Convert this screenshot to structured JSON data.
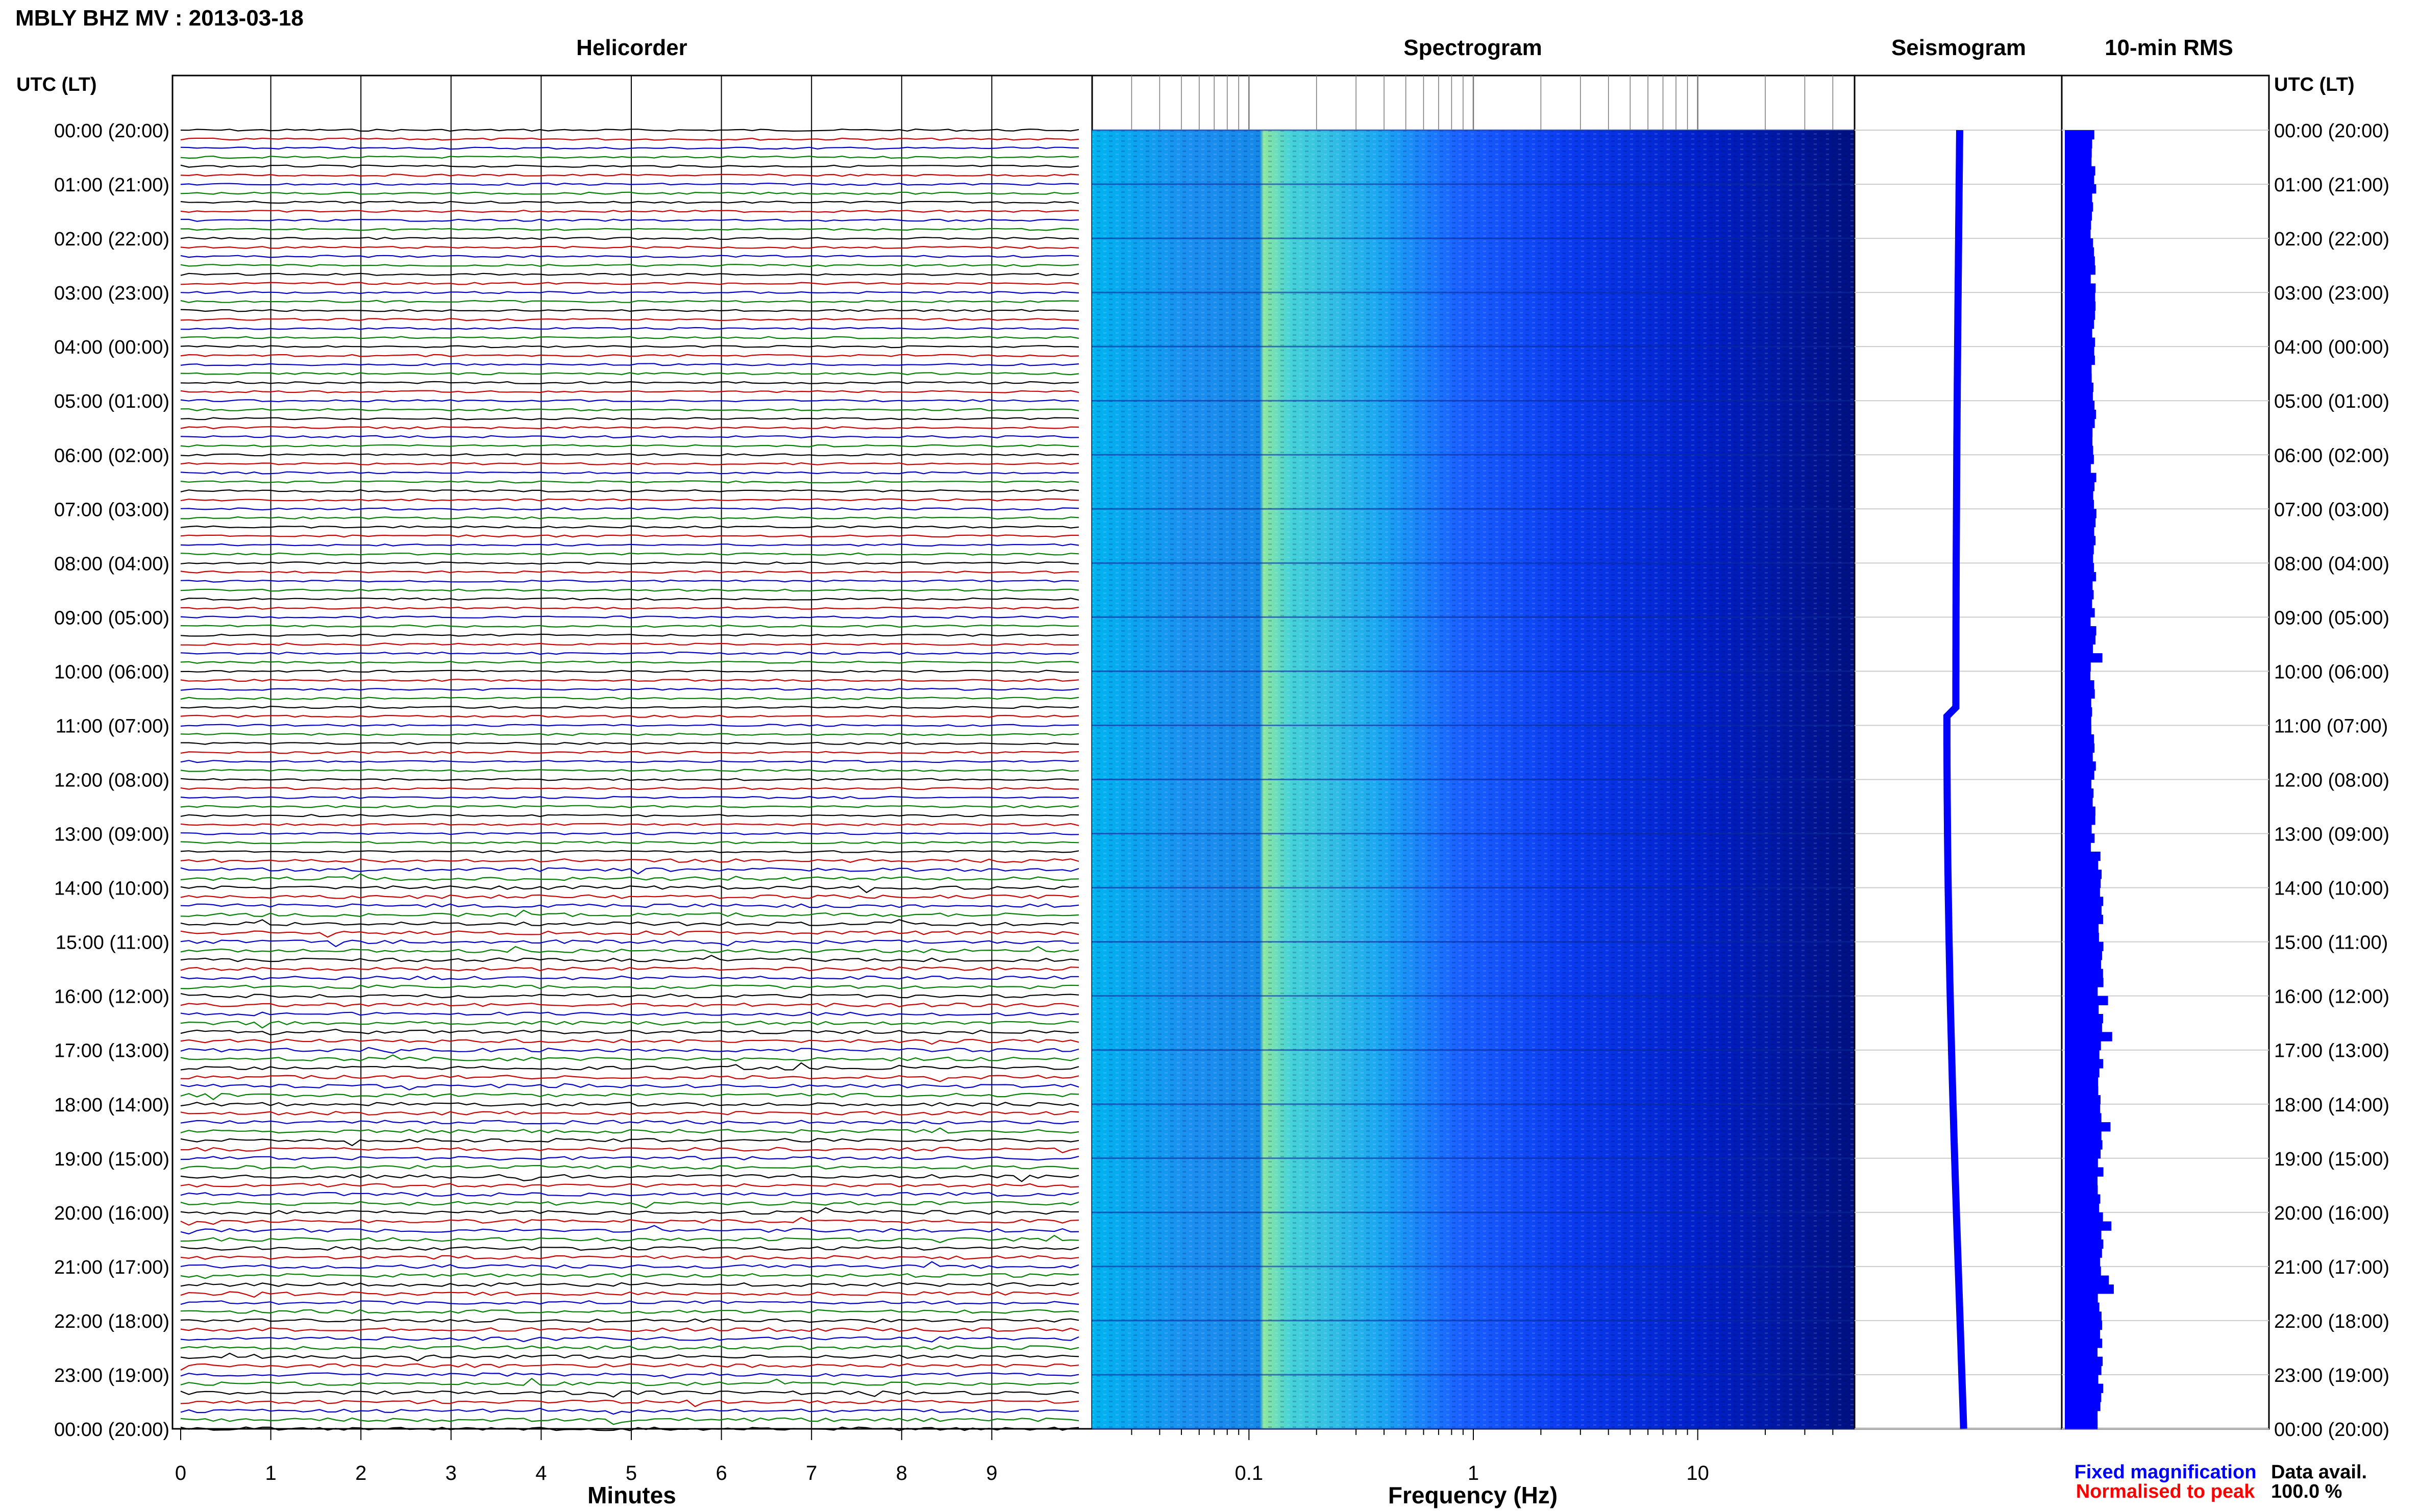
{
  "title": "MBLY BHZ MV : 2013-03-18",
  "panels": {
    "helicorder": "Helicorder",
    "spectrogram": "Spectrogram",
    "seismogram": "Seismogram",
    "rms": "10-min RMS"
  },
  "time_axis_label": "UTC (LT)",
  "time_labels": [
    "00:00 (20:00)",
    "01:00 (21:00)",
    "02:00 (22:00)",
    "03:00 (23:00)",
    "04:00 (00:00)",
    "05:00 (01:00)",
    "06:00 (02:00)",
    "07:00 (03:00)",
    "08:00 (04:00)",
    "09:00 (05:00)",
    "10:00 (06:00)",
    "11:00 (07:00)",
    "12:00 (08:00)",
    "13:00 (09:00)",
    "14:00 (10:00)",
    "15:00 (11:00)",
    "16:00 (12:00)",
    "17:00 (13:00)",
    "18:00 (14:00)",
    "19:00 (15:00)",
    "20:00 (16:00)",
    "21:00 (17:00)",
    "22:00 (18:00)",
    "23:00 (19:00)",
    "00:00 (20:00)"
  ],
  "minutes_axis": {
    "label": "Minutes",
    "ticks": [
      "0",
      "1",
      "2",
      "3",
      "4",
      "5",
      "6",
      "7",
      "8",
      "9"
    ]
  },
  "frequency_axis": {
    "label": "Frequency (Hz)",
    "ticks": [
      "0.1",
      "1",
      "10"
    ]
  },
  "legend": {
    "fixed": "Fixed magnification",
    "normalised": "Normalised to peak",
    "fixed_color": "#0000ff",
    "normalised_color": "#ff0000"
  },
  "data_avail": {
    "label": "Data avail.",
    "value": "100.0 %"
  },
  "chart_data": {
    "type": "heatmap",
    "title": "MBLY BHZ MV : 2013-03-18",
    "helicorder": {
      "lines_per_hour": 6,
      "line_minutes": 10,
      "trace_colors": [
        "#000000",
        "#cc0000",
        "#0000cc",
        "#008000"
      ],
      "x_range_minutes": [
        0,
        10
      ]
    },
    "spectrogram": {
      "x_scale": "log",
      "x_range_hz": [
        0.02,
        50
      ],
      "colormap": [
        "#000080",
        "#0000ff",
        "#1f77ff",
        "#00c8ff",
        "#7fffaa",
        "#ffff66"
      ]
    },
    "rms_color": "#0000ff",
    "seismogram_color": "#0000ff",
    "data_availability_percent": 100.0
  }
}
